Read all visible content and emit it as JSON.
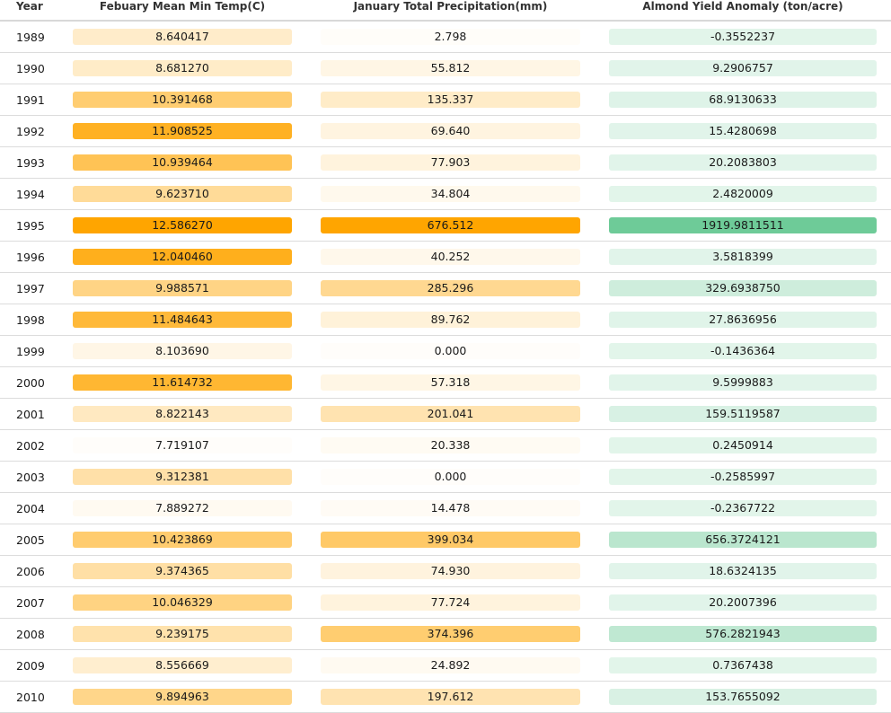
{
  "table": {
    "headers": [
      "Year",
      "Febuary Mean Min Temp(C)",
      "January Total Precipitation(mm)",
      "Almond Yield Anomaly (ton/acre)"
    ],
    "rows": [
      {
        "year": "1989",
        "temp": "8.640417",
        "precip": "2.798",
        "yield": "-0.3552237"
      },
      {
        "year": "1990",
        "temp": "8.681270",
        "precip": "55.812",
        "yield": "9.2906757"
      },
      {
        "year": "1991",
        "temp": "10.391468",
        "precip": "135.337",
        "yield": "68.9130633"
      },
      {
        "year": "1992",
        "temp": "11.908525",
        "precip": "69.640",
        "yield": "15.4280698"
      },
      {
        "year": "1993",
        "temp": "10.939464",
        "precip": "77.903",
        "yield": "20.2083803"
      },
      {
        "year": "1994",
        "temp": "9.623710",
        "precip": "34.804",
        "yield": "2.4820009"
      },
      {
        "year": "1995",
        "temp": "12.586270",
        "precip": "676.512",
        "yield": "1919.9811511"
      },
      {
        "year": "1996",
        "temp": "12.040460",
        "precip": "40.252",
        "yield": "3.5818399"
      },
      {
        "year": "1997",
        "temp": "9.988571",
        "precip": "285.296",
        "yield": "329.6938750"
      },
      {
        "year": "1998",
        "temp": "11.484643",
        "precip": "89.762",
        "yield": "27.8636956"
      },
      {
        "year": "1999",
        "temp": "8.103690",
        "precip": "0.000",
        "yield": "-0.1436364"
      },
      {
        "year": "2000",
        "temp": "11.614732",
        "precip": "57.318",
        "yield": "9.5999883"
      },
      {
        "year": "2001",
        "temp": "8.822143",
        "precip": "201.041",
        "yield": "159.5119587"
      },
      {
        "year": "2002",
        "temp": "7.719107",
        "precip": "20.338",
        "yield": "0.2450914"
      },
      {
        "year": "2003",
        "temp": "9.312381",
        "precip": "0.000",
        "yield": "-0.2585997"
      },
      {
        "year": "2004",
        "temp": "7.889272",
        "precip": "14.478",
        "yield": "-0.2367722"
      },
      {
        "year": "2005",
        "temp": "10.423869",
        "precip": "399.034",
        "yield": "656.3724121"
      },
      {
        "year": "2006",
        "temp": "9.374365",
        "precip": "74.930",
        "yield": "18.6324135"
      },
      {
        "year": "2007",
        "temp": "10.046329",
        "precip": "77.724",
        "yield": "20.2007396"
      },
      {
        "year": "2008",
        "temp": "9.239175",
        "precip": "374.396",
        "yield": "576.2821943"
      },
      {
        "year": "2009",
        "temp": "8.556669",
        "precip": "24.892",
        "yield": "0.7367438"
      },
      {
        "year": "2010",
        "temp": "9.894963",
        "precip": "197.612",
        "yield": "153.7655092"
      }
    ]
  },
  "colors": {
    "temp_precip_scale": "#ffa500",
    "yield_scale": "#6ecb98",
    "header_border": "#d8d8d8",
    "row_border": "#dcdcdc"
  }
}
